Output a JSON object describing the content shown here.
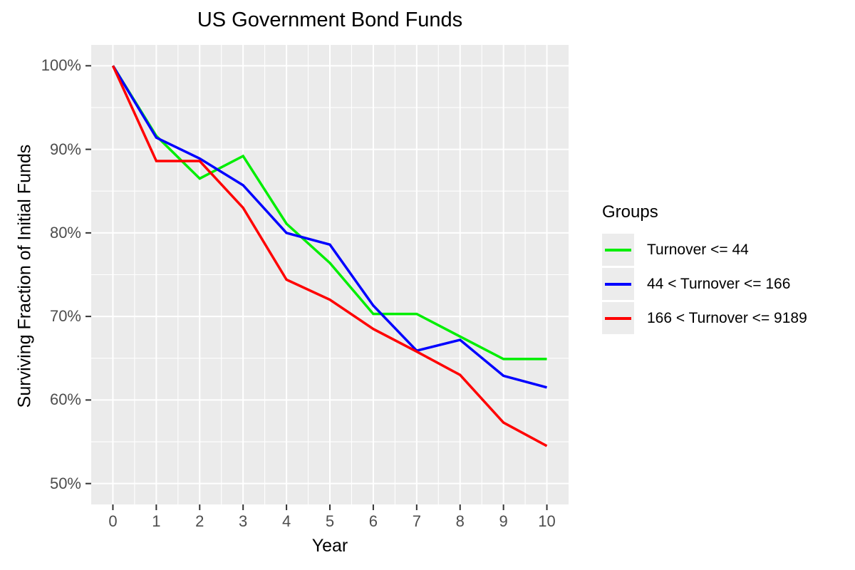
{
  "title": "US Government Bond Funds",
  "chart_data": {
    "type": "line",
    "title": "US Government Bond Funds",
    "xlabel": "Year",
    "ylabel": "Surviving Fraction of Initial Funds",
    "legend_title": "Groups",
    "legend_position": "right",
    "x": [
      0,
      1,
      2,
      3,
      4,
      5,
      6,
      7,
      8,
      9,
      10
    ],
    "series": [
      {
        "name": "Turnover <= 44",
        "color": "#00ee00",
        "values": [
          100,
          91.6,
          86.5,
          89.2,
          81.1,
          76.4,
          70.3,
          70.3,
          67.6,
          64.9,
          64.9
        ]
      },
      {
        "name": "44 < Turnover <= 166",
        "color": "#0000ff",
        "values": [
          100,
          91.4,
          88.9,
          85.7,
          80.0,
          78.6,
          71.3,
          65.9,
          67.2,
          62.9,
          61.5
        ]
      },
      {
        "name": "166 < Turnover <= 9189",
        "color": "#ff0000",
        "values": [
          100,
          88.6,
          88.6,
          83.0,
          74.4,
          72.0,
          68.5,
          65.8,
          63.0,
          57.3,
          54.5
        ]
      }
    ],
    "xlim": [
      0,
      10
    ],
    "ylim": [
      50,
      100
    ],
    "xticks": [
      0,
      1,
      2,
      3,
      4,
      5,
      6,
      7,
      8,
      9,
      10
    ],
    "xtick_labels": [
      "0",
      "1",
      "2",
      "3",
      "4",
      "5",
      "6",
      "7",
      "8",
      "9",
      "10"
    ],
    "yticks": [
      50,
      60,
      70,
      80,
      90,
      100
    ],
    "ytick_labels": [
      "50%",
      "60%",
      "70%",
      "80%",
      "90%",
      "100%"
    ],
    "grid": "major+minor, white on gray panel",
    "panel_bg": "#ebebeb",
    "grid_color": "#ffffff",
    "tick_color": "#333333",
    "tick_label_color": "#4d4d4d",
    "line_width": 3.5
  }
}
